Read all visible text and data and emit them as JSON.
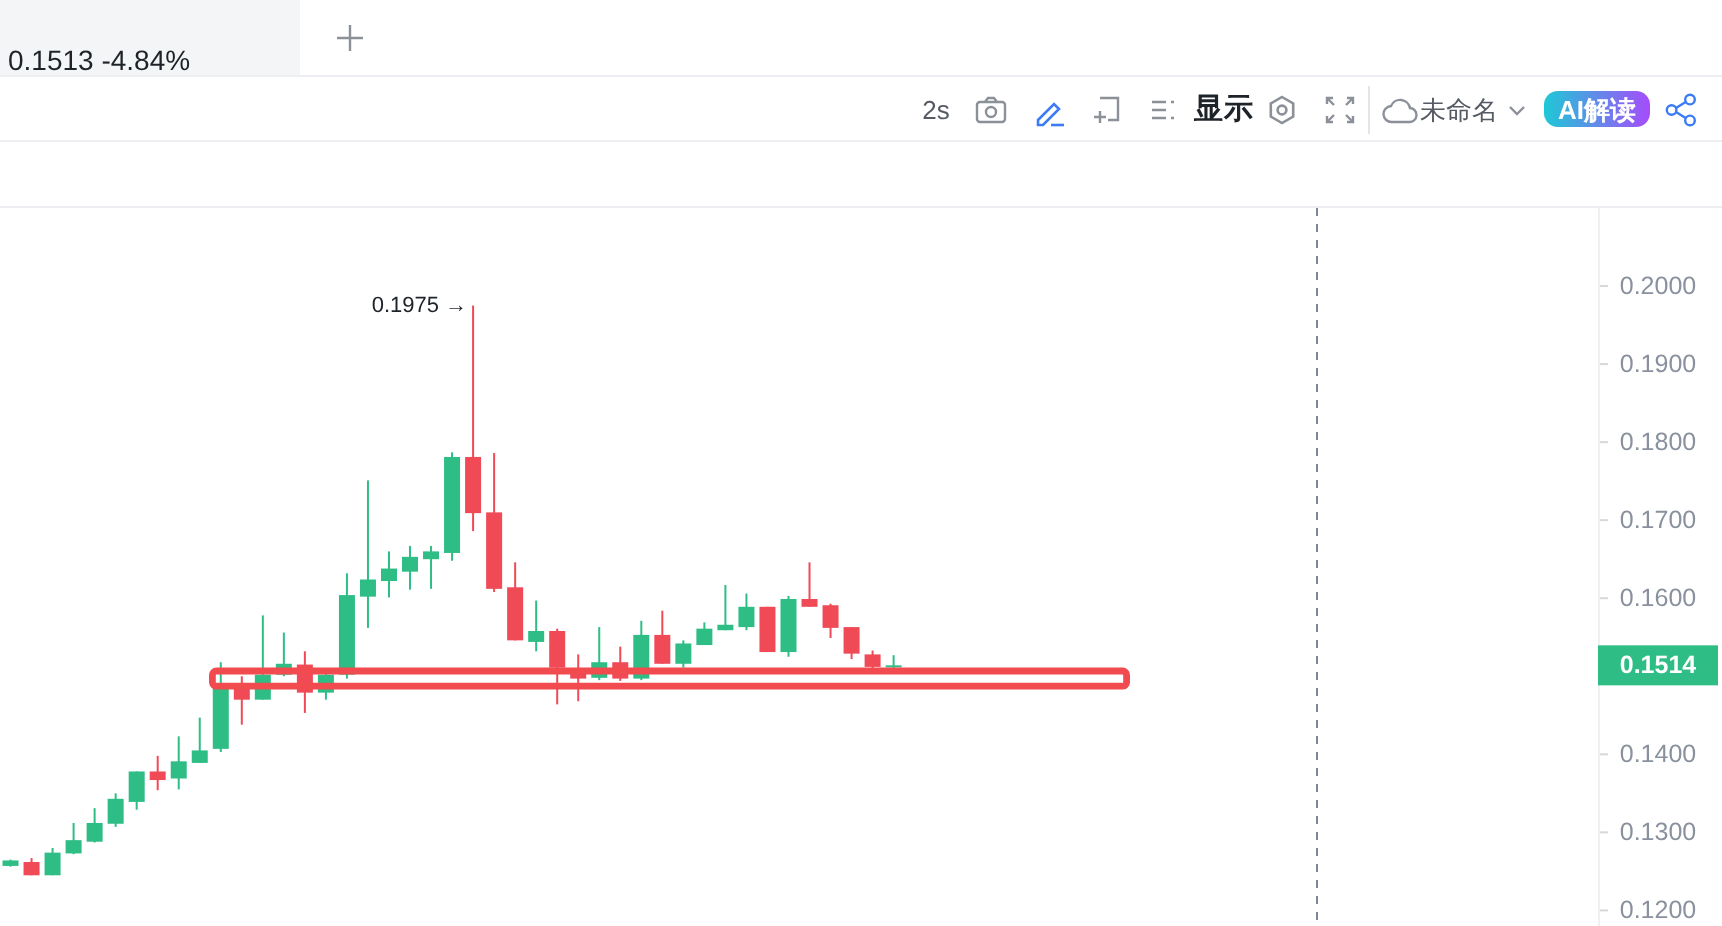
{
  "chart_data": {
    "type": "candlestick",
    "subtitle": "0.1513 -4.84%",
    "categories": [
      null,
      null,
      null,
      null,
      null,
      null,
      null,
      null,
      null,
      null,
      null,
      null,
      null,
      null,
      null,
      null,
      null,
      null,
      null,
      null,
      null,
      null,
      null,
      null,
      null,
      null,
      null,
      null,
      null,
      null,
      null,
      null,
      null,
      null,
      null,
      null,
      null,
      null,
      null,
      null,
      null,
      null,
      null,
      null,
      null,
      null,
      null,
      null,
      null,
      null,
      null,
      null,
      null,
      null,
      null,
      null,
      null,
      null,
      null,
      null,
      null,
      null,
      null,
      null,
      null,
      null,
      null,
      null,
      null,
      null,
      null,
      null,
      null,
      null,
      null,
      null
    ],
    "ohlc": [
      [
        0.1257,
        0.1265,
        0.1256,
        0.1264
      ],
      [
        0.1262,
        0.1267,
        0.1245,
        0.1245
      ],
      [
        0.1245,
        0.128,
        0.1245,
        0.1274
      ],
      [
        0.1273,
        0.1312,
        0.1272,
        0.129
      ],
      [
        0.1288,
        0.1331,
        0.1287,
        0.1312
      ],
      [
        0.1311,
        0.135,
        0.1307,
        0.1343
      ],
      [
        0.1339,
        0.1378,
        0.1329,
        0.1378
      ],
      [
        0.1378,
        0.1398,
        0.1354,
        0.1367
      ],
      [
        0.1369,
        0.1423,
        0.1355,
        0.1391
      ],
      [
        0.1389,
        0.1447,
        0.1389,
        0.1405
      ],
      [
        0.1407,
        0.1518,
        0.1403,
        0.1485
      ],
      [
        0.1487,
        0.15,
        0.1438,
        0.147
      ],
      [
        0.147,
        0.1578,
        0.147,
        0.1502
      ],
      [
        0.1502,
        0.1556,
        0.15,
        0.1516
      ],
      [
        0.1515,
        0.1532,
        0.1453,
        0.1479
      ],
      [
        0.1479,
        0.1503,
        0.147,
        0.1502
      ],
      [
        0.1502,
        0.1632,
        0.1497,
        0.1604
      ],
      [
        0.1602,
        0.1751,
        0.1562,
        0.1624
      ],
      [
        0.1622,
        0.166,
        0.1601,
        0.1638
      ],
      [
        0.1634,
        0.1667,
        0.1611,
        0.1653
      ],
      [
        0.165,
        0.1667,
        0.1612,
        0.166
      ],
      [
        0.1658,
        0.1787,
        0.1648,
        0.1781
      ],
      [
        0.1781,
        0.1975,
        0.1686,
        0.1709
      ],
      [
        0.171,
        0.1786,
        0.1608,
        0.1612
      ],
      [
        0.1614,
        0.1646,
        0.1546,
        0.1546
      ],
      [
        0.1544,
        0.1597,
        0.1532,
        0.1558
      ],
      [
        0.1558,
        0.1561,
        0.1464,
        0.1511
      ],
      [
        0.151,
        0.1528,
        0.1468,
        0.1497
      ],
      [
        0.1498,
        0.1563,
        0.1495,
        0.1518
      ],
      [
        0.1518,
        0.1538,
        0.1494,
        0.1497
      ],
      [
        0.1497,
        0.1571,
        0.1495,
        0.1553
      ],
      [
        0.1553,
        0.1584,
        0.1516,
        0.1516
      ],
      [
        0.1516,
        0.1546,
        0.1511,
        0.1542
      ],
      [
        0.154,
        0.1569,
        0.154,
        0.1561
      ],
      [
        0.1559,
        0.1617,
        0.1559,
        0.1566
      ],
      [
        0.1563,
        0.1606,
        0.1559,
        0.1589
      ],
      [
        0.1589,
        0.1589,
        0.1531,
        0.1531
      ],
      [
        0.1531,
        0.1603,
        0.1525,
        0.1599
      ],
      [
        0.1599,
        0.1646,
        0.1589,
        0.1589
      ],
      [
        0.1591,
        0.1593,
        0.1549,
        0.1562
      ],
      [
        0.1563,
        0.1563,
        0.1522,
        0.1529
      ],
      [
        0.1528,
        0.1533,
        0.151,
        0.1512
      ],
      [
        0.1512,
        0.1527,
        0.1505,
        0.1514
      ],
      null,
      null,
      null,
      null,
      null,
      null,
      null,
      null,
      null,
      null,
      null,
      null,
      null,
      null,
      null,
      null,
      null,
      null,
      null,
      null,
      null,
      null,
      null,
      null,
      null,
      null,
      null,
      null,
      null,
      null,
      null,
      null,
      null
    ],
    "colors": [
      "#2ebd85",
      "#ef4a56",
      "#2ebd85",
      "#2ebd85",
      "#2ebd85",
      "#2ebd85",
      "#2ebd85",
      "#ef4a56",
      "#2ebd85",
      "#2ebd85",
      "#2ebd85",
      "#ef4a56",
      "#2ebd85",
      "#2ebd85",
      "#ef4a56",
      "#2ebd85",
      "#2ebd85",
      "#2ebd85",
      "#2ebd85",
      "#2ebd85",
      "#2ebd85",
      "#2ebd85",
      "#ef4a56",
      "#ef4a56",
      "#ef4a56",
      "#2ebd85",
      "#ef4a56",
      "#ef4a56",
      "#2ebd85",
      "#ef4a56",
      "#2ebd85",
      "#ef4a56",
      "#2ebd85",
      "#2ebd85",
      "#2ebd85",
      "#2ebd85",
      "#ef4a56",
      "#2ebd85",
      "#ef4a56",
      "#ef4a56",
      "#ef4a56",
      "#ef4a56",
      "#2ebd85",
      null,
      null,
      null,
      null,
      null,
      null,
      null,
      null,
      null,
      null,
      null,
      null,
      null,
      null,
      null,
      null,
      null,
      null,
      null,
      null,
      null,
      null,
      null,
      null,
      null,
      null,
      null,
      null,
      null,
      null,
      null,
      null,
      null
    ],
    "ylim": [
      0.118,
      0.21
    ],
    "yticks": [
      {
        "value": 0.12,
        "label": "0.1200"
      },
      {
        "value": 0.13,
        "label": "0.1300"
      },
      {
        "value": 0.14,
        "label": "0.1400"
      },
      {
        "value": 0.16,
        "label": "0.1600"
      },
      {
        "value": 0.17,
        "label": "0.1700"
      },
      {
        "value": 0.18,
        "label": "0.1800"
      },
      {
        "value": 0.19,
        "label": "0.1900"
      },
      {
        "value": 0.2,
        "label": "0.2000"
      }
    ],
    "tick_labels": "y",
    "annotations": [
      "0.1975 →",
      "0.1514",
      "2s",
      "显示",
      "未命名",
      "AI解读"
    ]
  }
}
